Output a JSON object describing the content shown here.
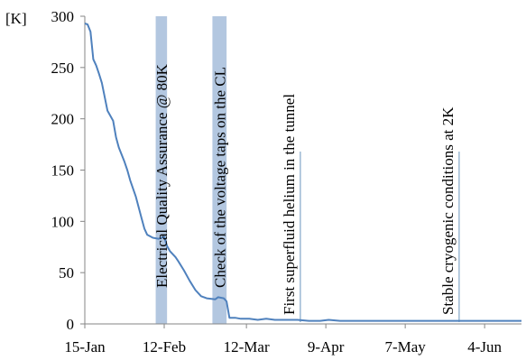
{
  "chart_data": {
    "type": "line",
    "title": "",
    "xlabel": "",
    "ylabel": "[K]",
    "ylim": [
      0,
      300
    ],
    "yticks": [
      0,
      50,
      100,
      150,
      200,
      250,
      300
    ],
    "xlim": [
      "2008-01-15",
      "2008-06-17"
    ],
    "xticks": [
      {
        "date": "2008-01-15",
        "label": "15-Jan"
      },
      {
        "date": "2008-02-12",
        "label": "12-Feb"
      },
      {
        "date": "2008-03-12",
        "label": "12-Mar"
      },
      {
        "date": "2008-04-09",
        "label": "9-Apr"
      },
      {
        "date": "2008-05-07",
        "label": "7-May"
      },
      {
        "date": "2008-06-04",
        "label": "4-Jun"
      }
    ],
    "grid": false,
    "line_color": "#4f81bd",
    "band_color": "#b3c7e0",
    "series": [
      {
        "x": [
          "2008-01-15",
          "2008-01-16",
          "2008-01-17",
          "2008-01-18",
          "2008-01-19",
          "2008-01-20",
          "2008-01-21",
          "2008-01-23",
          "2008-01-25",
          "2008-01-26",
          "2008-01-27",
          "2008-01-29",
          "2008-01-30",
          "2008-01-31",
          "2008-02-02",
          "2008-02-04",
          "2008-02-05",
          "2008-02-06",
          "2008-02-08",
          "2008-02-10",
          "2008-02-12",
          "2008-02-13",
          "2008-02-14",
          "2008-02-16",
          "2008-02-17",
          "2008-02-19",
          "2008-02-21",
          "2008-02-23",
          "2008-02-25",
          "2008-02-27",
          "2008-03-01",
          "2008-03-02",
          "2008-03-04",
          "2008-03-05",
          "2008-03-06",
          "2008-03-08",
          "2008-03-10",
          "2008-03-13",
          "2008-03-16",
          "2008-03-19",
          "2008-03-22",
          "2008-03-26",
          "2008-03-30",
          "2008-04-03",
          "2008-04-07",
          "2008-04-10",
          "2008-04-14",
          "2008-04-18",
          "2008-04-22",
          "2008-04-26",
          "2008-04-30",
          "2008-05-05",
          "2008-05-10",
          "2008-05-15",
          "2008-05-20",
          "2008-05-25",
          "2008-05-30",
          "2008-06-04",
          "2008-06-09",
          "2008-06-14",
          "2008-06-17"
        ],
        "y": [
          293,
          292,
          285,
          258,
          252,
          244,
          235,
          208,
          198,
          182,
          172,
          158,
          150,
          140,
          124,
          103,
          93,
          87,
          84,
          83,
          85,
          76,
          71,
          65,
          61,
          52,
          42,
          33,
          27,
          25,
          24,
          26,
          25,
          22,
          6,
          6,
          5,
          5,
          4,
          5,
          4,
          4,
          4,
          3,
          3,
          4,
          3,
          3,
          3,
          3,
          3,
          3,
          3,
          3,
          3,
          3,
          3,
          3,
          3,
          3,
          3
        ]
      }
    ],
    "bands": [
      {
        "from": "2008-02-09",
        "to": "2008-02-13",
        "label": "Electrical Quality Assurance @ 80K"
      },
      {
        "from": "2008-02-29",
        "to": "2008-03-05",
        "label": "Check of the voltage taps on the CL"
      }
    ],
    "markers": [
      {
        "date": "2008-03-31",
        "value": 168,
        "label": "First superfluid helium in the tunnel"
      },
      {
        "date": "2008-05-26",
        "value": 168,
        "label": "Stable cryogenic conditions at 2K"
      }
    ]
  }
}
